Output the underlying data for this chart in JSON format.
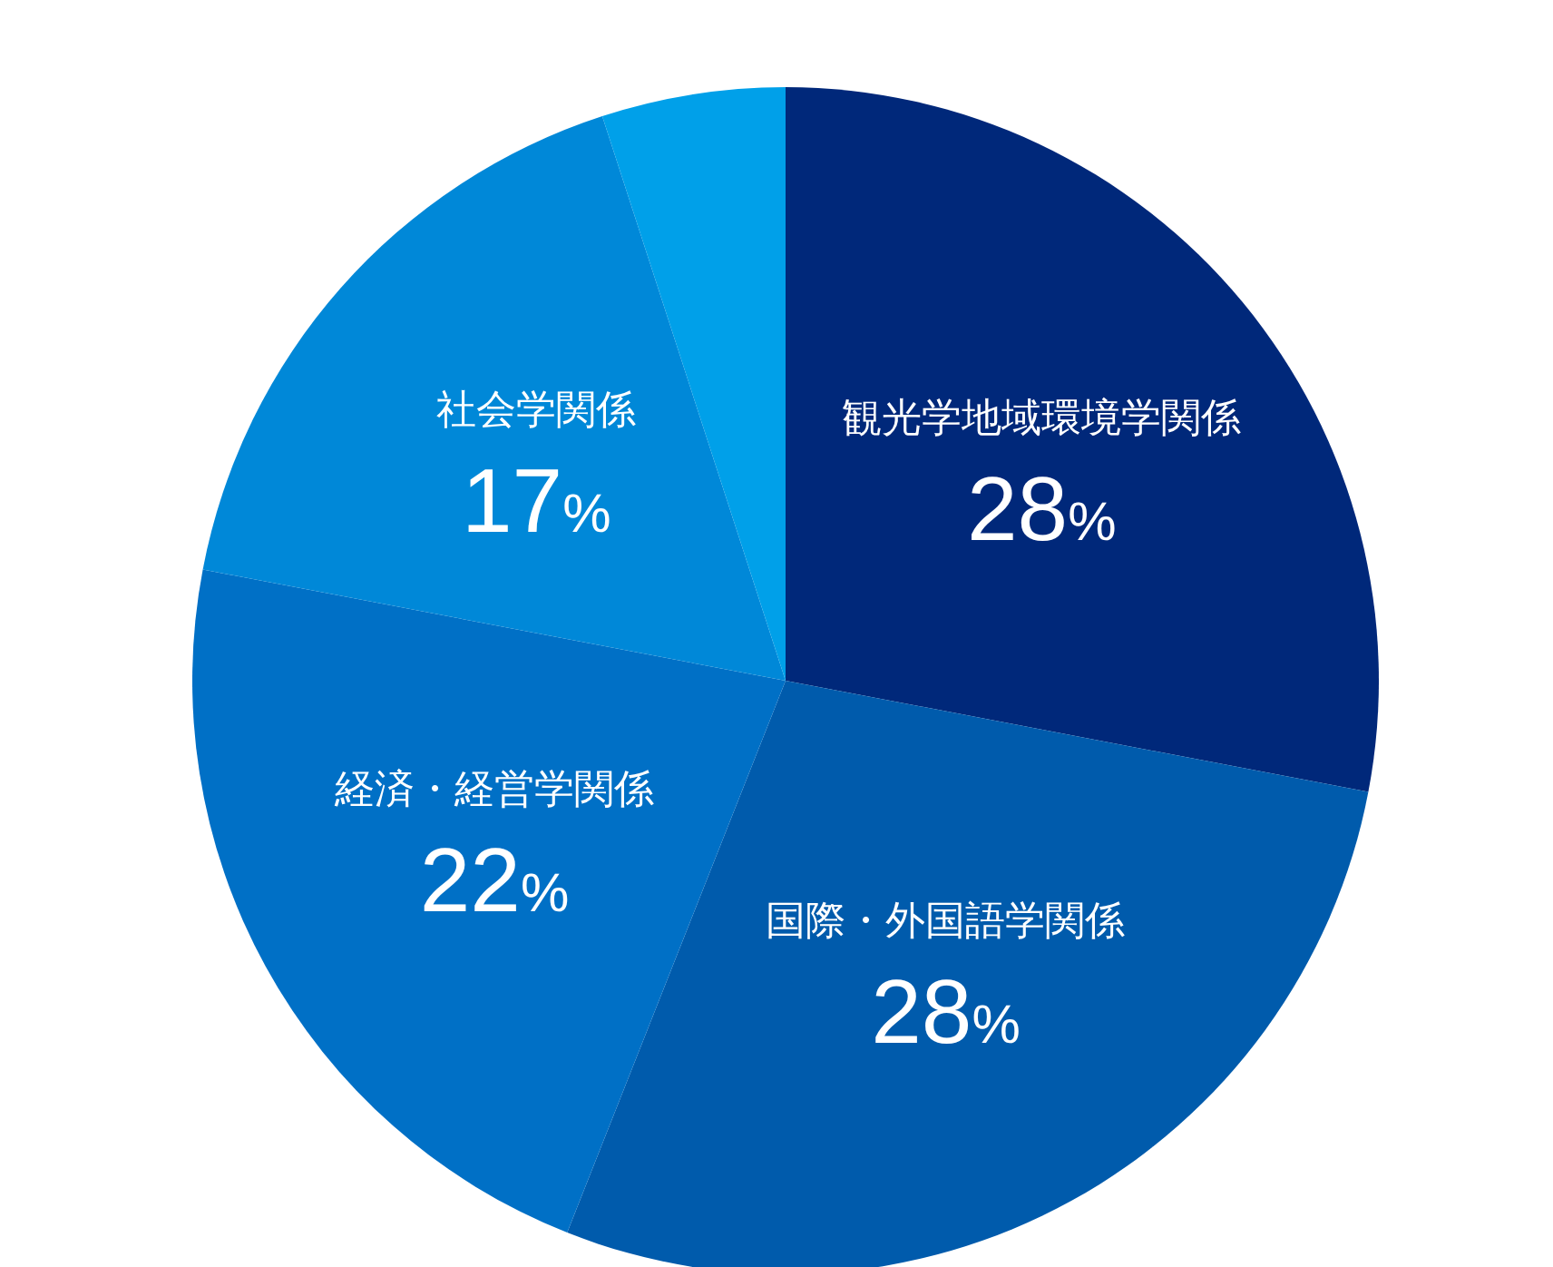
{
  "chart_data": {
    "type": "pie",
    "categories": [
      "観光学地域環境学関係",
      "国際・外国語学関係",
      "経済・経営学関係",
      "社会学関係",
      null
    ],
    "values": [
      28,
      28,
      22,
      17,
      5
    ],
    "value_labels": [
      "28%",
      "28%",
      "22%",
      "17%",
      null
    ],
    "colors": [
      "#00287a",
      "#005bac",
      "#0070c6",
      "#0088d8",
      "#00a0e9"
    ]
  }
}
